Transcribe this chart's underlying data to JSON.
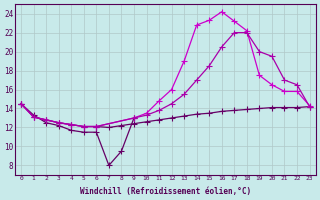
{
  "xlabel": "Windchill (Refroidissement éolien,°C)",
  "bg_color": "#c8eaea",
  "grid_color": "#b0c8c8",
  "xlim_min": -0.5,
  "xlim_max": 23.5,
  "ylim_min": 7,
  "ylim_max": 25,
  "yticks": [
    8,
    10,
    12,
    14,
    16,
    18,
    20,
    22,
    24
  ],
  "xticks": [
    0,
    1,
    2,
    3,
    4,
    5,
    6,
    7,
    8,
    9,
    10,
    11,
    12,
    13,
    14,
    15,
    16,
    17,
    18,
    19,
    20,
    21,
    22,
    23
  ],
  "line_dip_x": [
    0,
    1,
    2,
    3,
    4,
    5,
    6,
    7,
    8,
    9
  ],
  "line_dip_y": [
    14.5,
    13.3,
    12.5,
    12.2,
    11.7,
    11.5,
    11.5,
    8.0,
    9.5,
    13.0
  ],
  "line_flat_x": [
    0,
    1,
    2,
    3,
    4,
    5,
    6,
    7,
    8,
    9,
    10,
    11,
    12,
    13,
    14,
    15,
    16,
    17,
    18,
    19,
    20,
    21,
    22,
    23
  ],
  "line_flat_y": [
    14.5,
    13.1,
    12.8,
    12.5,
    12.3,
    12.1,
    12.1,
    12.0,
    12.2,
    12.4,
    12.6,
    12.8,
    13.0,
    13.2,
    13.4,
    13.5,
    13.7,
    13.8,
    13.9,
    14.0,
    14.1,
    14.1,
    14.1,
    14.2
  ],
  "line_top_x": [
    0,
    1,
    2,
    3,
    4,
    5,
    6,
    9,
    10,
    11,
    12,
    13,
    14,
    15,
    16,
    17,
    18,
    19,
    20,
    21,
    22,
    23
  ],
  "line_top_y": [
    14.5,
    13.1,
    12.8,
    12.5,
    12.3,
    12.1,
    12.1,
    13.0,
    13.5,
    14.8,
    16.0,
    19.0,
    22.8,
    23.3,
    24.2,
    23.2,
    22.2,
    17.5,
    16.5,
    15.8,
    15.8,
    14.3
  ],
  "line_mid_x": [
    0,
    1,
    2,
    3,
    4,
    5,
    6,
    9,
    10,
    11,
    12,
    13,
    14,
    15,
    16,
    17,
    18,
    19,
    20,
    21,
    22,
    23
  ],
  "line_mid_y": [
    14.5,
    13.1,
    12.8,
    12.5,
    12.3,
    12.1,
    12.1,
    13.0,
    13.3,
    13.8,
    14.5,
    15.5,
    17.0,
    18.5,
    20.5,
    22.0,
    22.0,
    20.0,
    19.5,
    17.0,
    16.5,
    14.2
  ],
  "color_dark": "#660066",
  "color_bright": "#cc00cc",
  "color_mid": "#aa00aa"
}
